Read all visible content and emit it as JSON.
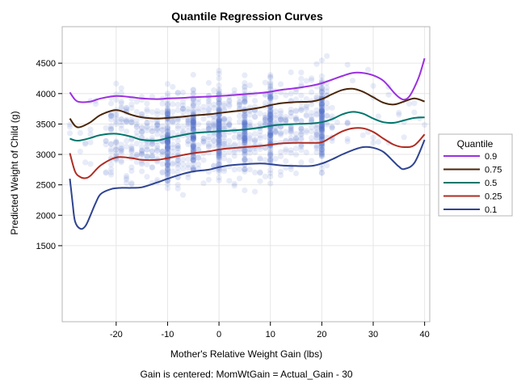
{
  "chart_data": {
    "type": "line",
    "title": "Quantile Regression Curves",
    "xlabel": "Mother's Relative Weight Gain (lbs)",
    "ylabel": "Predicted Weight of Child (g)",
    "footnote": "Gain is centered: MomWtGain = Actual_Gain - 30",
    "xlim": [
      -30.5,
      41
    ],
    "ylim": [
      250,
      5100
    ],
    "xticks": [
      -20,
      -10,
      0,
      10,
      20,
      30,
      40
    ],
    "yticks": [
      1500,
      2000,
      2500,
      3000,
      3500,
      4000,
      4500
    ],
    "grid": true,
    "legend": {
      "title": "Quantile",
      "placement": "right"
    },
    "series": [
      {
        "name": "0.9",
        "color": "#9b30e0",
        "x": [
          -29,
          -28,
          -27,
          -25,
          -23,
          -20,
          -17,
          -15,
          -12,
          -10,
          -7,
          -5,
          -2,
          0,
          2,
          5,
          8,
          10,
          12,
          15,
          18,
          20,
          22,
          24,
          26,
          28,
          30,
          32,
          34,
          35,
          36,
          37,
          38,
          39,
          40
        ],
        "y": [
          4020,
          3900,
          3860,
          3870,
          3920,
          3960,
          3940,
          3920,
          3910,
          3920,
          3930,
          3940,
          3950,
          3960,
          3970,
          3990,
          4010,
          4030,
          4060,
          4090,
          4130,
          4170,
          4230,
          4290,
          4340,
          4340,
          4300,
          4210,
          4020,
          3940,
          3900,
          3950,
          4100,
          4300,
          4580
        ]
      },
      {
        "name": "0.75",
        "color": "#4a2508",
        "x": [
          -29,
          -28,
          -27,
          -25,
          -23,
          -20,
          -17,
          -15,
          -12,
          -10,
          -7,
          -5,
          -2,
          0,
          2,
          5,
          8,
          10,
          12,
          15,
          18,
          20,
          22,
          24,
          26,
          28,
          30,
          32,
          34,
          36,
          38,
          40
        ],
        "y": [
          3590,
          3470,
          3450,
          3530,
          3650,
          3730,
          3650,
          3610,
          3590,
          3600,
          3620,
          3640,
          3660,
          3680,
          3700,
          3730,
          3770,
          3810,
          3840,
          3860,
          3870,
          3910,
          3990,
          4060,
          4080,
          4030,
          3940,
          3850,
          3820,
          3870,
          3920,
          3870
        ]
      },
      {
        "name": "0.5",
        "color": "#00766c",
        "x": [
          -29,
          -28,
          -27,
          -25,
          -23,
          -20,
          -17,
          -15,
          -12,
          -10,
          -7,
          -5,
          -2,
          0,
          2,
          5,
          8,
          10,
          12,
          15,
          18,
          20,
          22,
          24,
          26,
          28,
          30,
          32,
          34,
          36,
          38,
          40
        ],
        "y": [
          3260,
          3230,
          3230,
          3270,
          3320,
          3340,
          3290,
          3240,
          3230,
          3270,
          3320,
          3350,
          3370,
          3380,
          3390,
          3410,
          3440,
          3470,
          3490,
          3500,
          3510,
          3530,
          3580,
          3660,
          3700,
          3670,
          3590,
          3530,
          3520,
          3560,
          3600,
          3610
        ]
      },
      {
        "name": "0.25",
        "color": "#b02c22",
        "x": [
          -29,
          -28,
          -27,
          -26,
          -25,
          -23,
          -20,
          -17,
          -15,
          -12,
          -10,
          -7,
          -5,
          -2,
          0,
          2,
          5,
          8,
          10,
          12,
          15,
          18,
          20,
          22,
          24,
          26,
          28,
          30,
          32,
          34,
          36,
          38,
          40
        ],
        "y": [
          3020,
          2720,
          2630,
          2610,
          2650,
          2820,
          2950,
          2940,
          2910,
          2910,
          2940,
          2990,
          3020,
          3050,
          3080,
          3100,
          3120,
          3140,
          3160,
          3180,
          3190,
          3190,
          3200,
          3290,
          3380,
          3430,
          3430,
          3370,
          3260,
          3160,
          3120,
          3150,
          3330
        ]
      },
      {
        "name": "0.1",
        "color": "#2e4390",
        "x": [
          -29,
          -28.5,
          -28,
          -27,
          -26,
          -25,
          -24,
          -23,
          -21,
          -19,
          -17,
          -15,
          -12,
          -10,
          -7,
          -5,
          -2,
          0,
          2,
          5,
          8,
          10,
          12,
          15,
          18,
          20,
          22,
          24,
          26,
          28,
          30,
          32,
          34,
          35,
          36,
          38,
          40
        ],
        "y": [
          2600,
          2220,
          1900,
          1780,
          1820,
          2000,
          2200,
          2350,
          2430,
          2450,
          2450,
          2460,
          2540,
          2600,
          2680,
          2720,
          2750,
          2790,
          2820,
          2840,
          2850,
          2840,
          2820,
          2810,
          2810,
          2850,
          2920,
          3000,
          3070,
          3120,
          3110,
          3040,
          2880,
          2800,
          2760,
          2860,
          3240
        ]
      }
    ]
  }
}
